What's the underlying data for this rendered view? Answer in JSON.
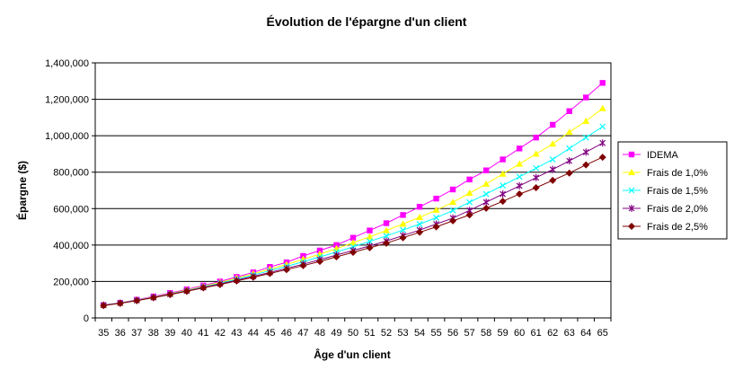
{
  "chart_data": {
    "type": "line",
    "title": "Évolution de l'épargne d'un client",
    "xlabel": "Âge d'un client",
    "ylabel": "Épargne ($)",
    "ylim": [
      0,
      1400000
    ],
    "yticks": [
      "0",
      "200,000",
      "400,000",
      "600,000",
      "800,000",
      "1,000,000",
      "1,200,000",
      "1,400,000"
    ],
    "grid": "horizontal",
    "legend_position": "right",
    "x": [
      35,
      36,
      37,
      38,
      39,
      40,
      41,
      42,
      43,
      44,
      45,
      46,
      47,
      48,
      49,
      50,
      51,
      52,
      53,
      54,
      55,
      56,
      57,
      58,
      59,
      60,
      61,
      62,
      63,
      64,
      65
    ],
    "series": [
      {
        "name": "IDEMA",
        "color": "#ff00ff",
        "marker": "square",
        "values": [
          70000,
          83000,
          100000,
          118000,
          137000,
          157000,
          178000,
          200000,
          225000,
          250000,
          280000,
          305000,
          340000,
          370000,
          400000,
          440000,
          480000,
          520000,
          565000,
          610000,
          655000,
          705000,
          760000,
          810000,
          870000,
          930000,
          990000,
          1060000,
          1135000,
          1210000,
          1290000
        ]
      },
      {
        "name": "Frais de 1,0%",
        "color": "#ffff00",
        "marker": "triangle",
        "values": [
          70000,
          82000,
          98000,
          115000,
          133000,
          153000,
          173000,
          195000,
          218000,
          242000,
          268000,
          293000,
          322000,
          350000,
          380000,
          412000,
          445000,
          480000,
          515000,
          552000,
          592000,
          635000,
          685000,
          735000,
          790000,
          845000,
          900000,
          955000,
          1020000,
          1080000,
          1150000
        ]
      },
      {
        "name": "Frais de 1,5%",
        "color": "#00ffff",
        "marker": "x",
        "values": [
          70000,
          82000,
          97000,
          113000,
          131000,
          150000,
          170000,
          190000,
          212000,
          235000,
          260000,
          283000,
          308000,
          335000,
          362000,
          390000,
          420000,
          450000,
          482000,
          515000,
          550000,
          590000,
          635000,
          680000,
          727000,
          775000,
          822000,
          870000,
          930000,
          990000,
          1050000
        ]
      },
      {
        "name": "Frais de 2,0%",
        "color": "#800080",
        "marker": "star",
        "values": [
          70000,
          81000,
          96000,
          112000,
          130000,
          148000,
          167000,
          187000,
          207000,
          228000,
          250000,
          272000,
          295000,
          320000,
          345000,
          370000,
          395000,
          422000,
          452000,
          482000,
          515000,
          548000,
          590000,
          635000,
          680000,
          725000,
          770000,
          815000,
          862000,
          910000,
          960000
        ]
      },
      {
        "name": "Frais de 2,5%",
        "color": "#800000",
        "marker": "diamond",
        "values": [
          68000,
          80000,
          95000,
          111000,
          128000,
          146000,
          165000,
          183000,
          203000,
          223000,
          244000,
          265000,
          287000,
          310000,
          335000,
          360000,
          385000,
          410000,
          440000,
          470000,
          500000,
          533000,
          565000,
          602000,
          640000,
          680000,
          715000,
          755000,
          795000,
          840000,
          882000
        ]
      }
    ]
  }
}
